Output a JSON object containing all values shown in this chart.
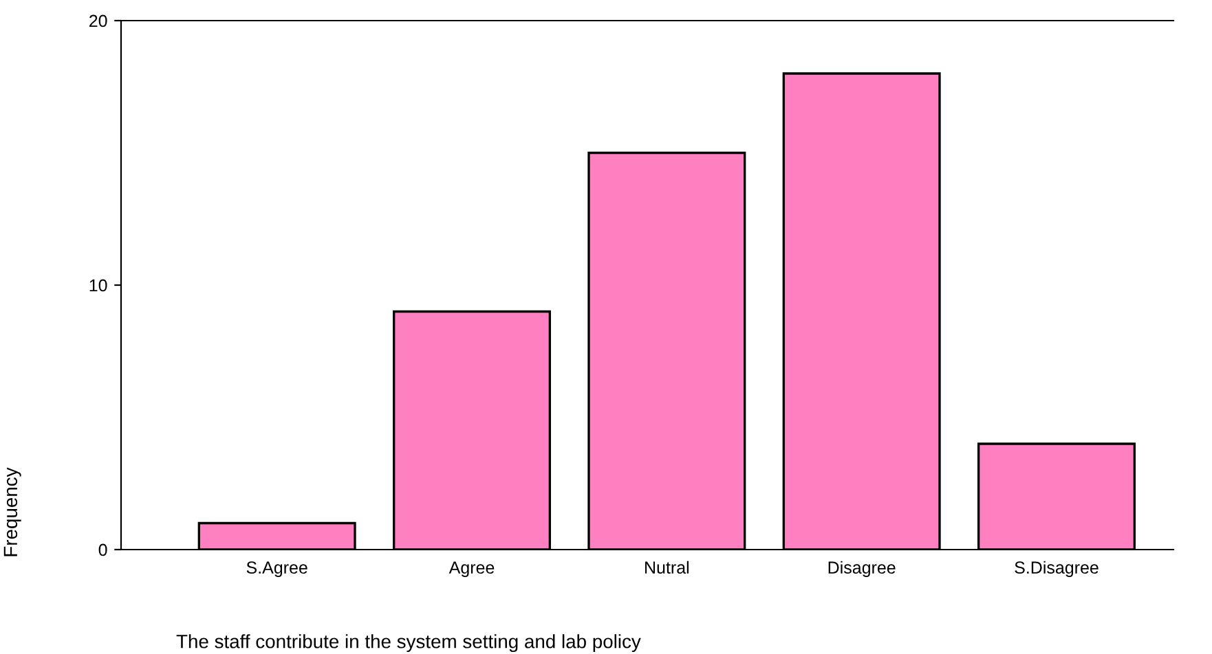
{
  "chart_data": {
    "type": "bar",
    "xlabel": "The staff contribute in the system setting and lab policy",
    "ylabel": "Frequency",
    "categories": [
      "S.Agree",
      "Agree",
      "Nutral",
      "Disagree",
      "S.Disagree"
    ],
    "values": [
      1,
      9,
      15,
      18,
      4
    ],
    "color": "#ff80c0",
    "ylim": [
      0,
      20
    ],
    "yticks": [
      0,
      10,
      20
    ],
    "grid": false,
    "legend": false
  }
}
